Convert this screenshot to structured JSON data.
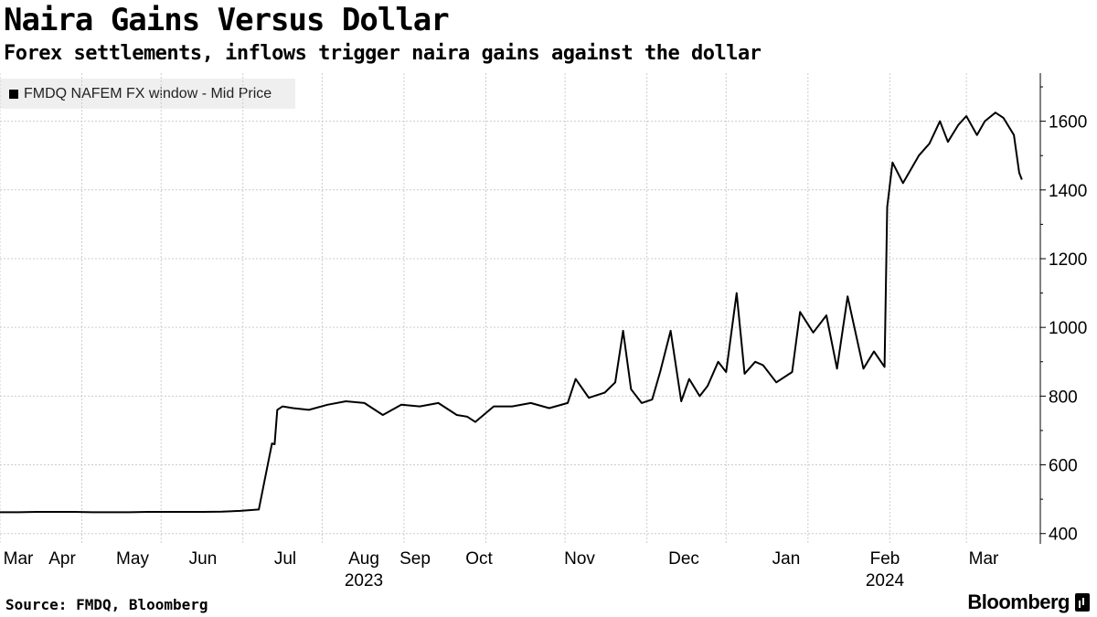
{
  "header": {
    "title": "Naira Gains Versus Dollar",
    "subtitle": "Forex settlements, inflows trigger naira gains against the dollar"
  },
  "footer": {
    "source": "Source: FMDQ, Bloomberg",
    "brand": "Bloomberg"
  },
  "colors": {
    "line": "#000000",
    "grid": "#cccccc",
    "legend_bg": "#efefef"
  },
  "chart_data": {
    "type": "line",
    "title": "Naira Gains Versus Dollar",
    "subtitle": "Forex settlements, inflows trigger naira gains against the dollar",
    "series": [
      {
        "name": "FMDQ NAFEM FX window - Mid Price",
        "x": [
          "2023-03-01",
          "2023-03-08",
          "2023-03-15",
          "2023-03-22",
          "2023-03-29",
          "2023-04-05",
          "2023-04-12",
          "2023-04-19",
          "2023-04-26",
          "2023-05-03",
          "2023-05-10",
          "2023-05-17",
          "2023-05-24",
          "2023-05-31",
          "2023-06-07",
          "2023-06-12",
          "2023-06-13",
          "2023-06-14",
          "2023-06-16",
          "2023-06-20",
          "2023-06-26",
          "2023-07-03",
          "2023-07-10",
          "2023-07-17",
          "2023-07-24",
          "2023-07-31",
          "2023-08-07",
          "2023-08-14",
          "2023-08-21",
          "2023-08-25",
          "2023-08-28",
          "2023-09-04",
          "2023-09-11",
          "2023-09-18",
          "2023-09-25",
          "2023-10-02",
          "2023-10-05",
          "2023-10-10",
          "2023-10-16",
          "2023-10-20",
          "2023-10-23",
          "2023-10-26",
          "2023-10-30",
          "2023-11-03",
          "2023-11-06",
          "2023-11-10",
          "2023-11-14",
          "2023-11-17",
          "2023-11-21",
          "2023-11-24",
          "2023-11-28",
          "2023-12-01",
          "2023-12-05",
          "2023-12-08",
          "2023-12-12",
          "2023-12-15",
          "2023-12-20",
          "2023-12-26",
          "2023-12-29",
          "2024-01-03",
          "2024-01-08",
          "2024-01-12",
          "2024-01-16",
          "2024-01-22",
          "2024-01-26",
          "2024-01-30",
          "2024-01-31",
          "2024-02-02",
          "2024-02-06",
          "2024-02-12",
          "2024-02-16",
          "2024-02-20",
          "2024-02-23",
          "2024-02-27",
          "2024-03-01",
          "2024-03-05",
          "2024-03-08",
          "2024-03-12",
          "2024-03-15",
          "2024-03-19",
          "2024-03-21",
          "2024-03-22"
        ],
        "values": [
          462,
          462,
          463,
          463,
          463,
          462,
          462,
          462,
          463,
          463,
          463,
          463,
          464,
          466,
          470,
          662,
          660,
          760,
          770,
          765,
          760,
          775,
          785,
          780,
          745,
          775,
          770,
          780,
          745,
          740,
          725,
          770,
          770,
          780,
          765,
          780,
          850,
          795,
          810,
          840,
          990,
          820,
          780,
          790,
          870,
          990,
          785,
          850,
          800,
          830,
          900,
          870,
          1100,
          865,
          900,
          890,
          840,
          870,
          1045,
          985,
          1035,
          880,
          1090,
          880,
          930,
          885,
          1350,
          1480,
          1420,
          1500,
          1535,
          1600,
          1540,
          1590,
          1615,
          1560,
          1600,
          1625,
          1610,
          1560,
          1450,
          1430
        ]
      }
    ],
    "x_tick_labels": [
      "Mar",
      "Apr",
      "May",
      "Jun",
      "Jul",
      "Aug",
      "Sep",
      "Oct",
      "Nov",
      "Dec",
      "Jan",
      "Feb",
      "Mar"
    ],
    "x_year_labels": [
      "2023",
      "2024"
    ],
    "y_ticks": [
      400,
      600,
      800,
      1000,
      1200,
      1400,
      1600
    ],
    "ylim": [
      370,
      1740
    ],
    "xlim": [
      "2023-03-01",
      "2024-03-29"
    ],
    "grid": "horizontal",
    "legend_position": "top-left",
    "y_axis_position": "right"
  }
}
